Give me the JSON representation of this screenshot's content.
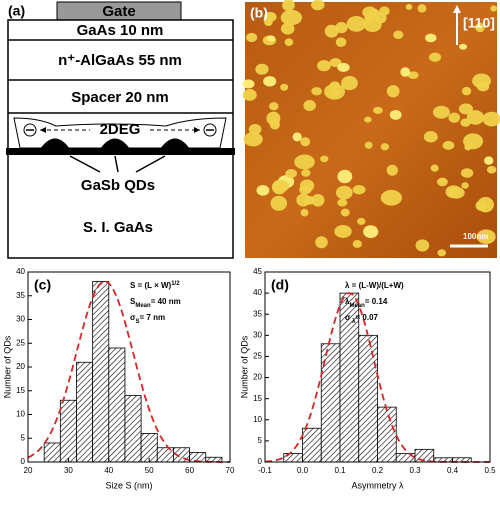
{
  "diagram": {
    "panel_label": "(a)",
    "gate": "Gate",
    "layers": [
      "GaAs 10 nm",
      "n⁺-AlGaAs 55 nm",
      "Spacer 20 nm"
    ],
    "channel": "2DEG",
    "dots": "GaSb QDs",
    "substrate": "S. I. GaAs"
  },
  "image": {
    "panel_label": "(b)",
    "direction": "[110]",
    "scale_bar": "100nm"
  },
  "chart_data": [
    {
      "type": "histogram",
      "panel_label": "(c)",
      "x_label": "Size S (nm)",
      "y_label": "Number of QDs",
      "bins": [
        24,
        28,
        32,
        36,
        40,
        44,
        48,
        52,
        56,
        60,
        64,
        68
      ],
      "values": [
        4,
        13,
        21,
        38,
        24,
        14,
        6,
        3,
        3,
        2,
        1
      ],
      "xlim": [
        20,
        70
      ],
      "xticks": [
        20,
        30,
        40,
        50,
        60,
        70
      ],
      "ylim": [
        0,
        40
      ],
      "yticks": [
        0,
        5,
        10,
        15,
        20,
        25,
        30,
        35,
        40
      ],
      "fit": {
        "mean": 39,
        "sigma": 7,
        "peak": 38,
        "color": "#d62728"
      },
      "annotations": [
        {
          "text": "S = (L × W)",
          "sup": "1/2"
        },
        {
          "text": "S",
          "sub": "Mean",
          "after": "= 40 nm"
        },
        {
          "text": "σ",
          "sub": "S",
          "after": "= 7 nm"
        }
      ]
    },
    {
      "type": "histogram",
      "panel_label": "(d)",
      "x_label": "Asymmetry λ",
      "y_label": "Number of QDs",
      "bins": [
        -0.05,
        0,
        0.05,
        0.1,
        0.15,
        0.2,
        0.25,
        0.3,
        0.35,
        0.4,
        0.45
      ],
      "values": [
        2,
        8,
        28,
        40,
        30,
        13,
        2,
        3,
        1,
        1
      ],
      "xlim": [
        -0.1,
        0.5
      ],
      "xticks": [
        -0.1,
        {
          "value": 0,
          "label": "0.0"
        },
        0.1,
        0.2,
        0.3,
        0.4,
        0.5
      ],
      "ylim": [
        0,
        45
      ],
      "yticks": [
        0,
        5,
        10,
        15,
        20,
        25,
        30,
        35,
        40,
        45
      ],
      "fit": {
        "mean": 0.125,
        "sigma": 0.065,
        "peak": 40,
        "color": "#d62728"
      },
      "annotations": [
        {
          "text": "λ = (L-W)/(L+W)"
        },
        {
          "text": "λ",
          "sub": "Mean",
          "after": "= 0.14"
        },
        {
          "text": "σ",
          "sub": " λ",
          "after": "= 0.07"
        }
      ]
    }
  ]
}
